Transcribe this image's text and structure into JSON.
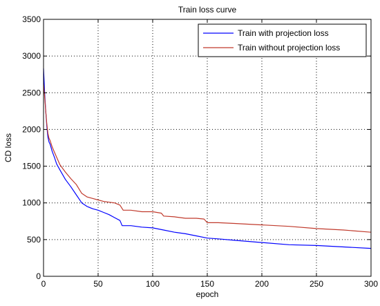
{
  "chart_data": {
    "type": "line",
    "title": "Train loss curve",
    "xlabel": "epoch",
    "ylabel": "CD loss",
    "xlim": [
      0,
      300
    ],
    "ylim": [
      0,
      3500
    ],
    "xticks": [
      0,
      50,
      100,
      150,
      200,
      250,
      300
    ],
    "yticks": [
      0,
      500,
      1000,
      1500,
      2000,
      2500,
      3000,
      3500
    ],
    "grid": true,
    "legend_position": "top-right",
    "series": [
      {
        "name": "Train with projection loss",
        "color": "#0000ff",
        "x": [
          0,
          1,
          2,
          3,
          4,
          5,
          6,
          8,
          10,
          12,
          15,
          20,
          25,
          30,
          35,
          40,
          45,
          50,
          55,
          60,
          65,
          70,
          72,
          80,
          90,
          100,
          110,
          120,
          130,
          140,
          150,
          160,
          175,
          200,
          225,
          250,
          275,
          300
        ],
        "values": [
          2830,
          2500,
          2250,
          2050,
          1900,
          1830,
          1800,
          1700,
          1620,
          1530,
          1450,
          1320,
          1220,
          1110,
          1000,
          950,
          920,
          900,
          870,
          840,
          800,
          760,
          690,
          690,
          670,
          660,
          630,
          600,
          580,
          550,
          520,
          510,
          490,
          460,
          430,
          420,
          400,
          380
        ]
      },
      {
        "name": "Train without projection loss",
        "color": "#c0392b",
        "x": [
          0,
          1,
          2,
          3,
          4,
          5,
          6,
          8,
          10,
          12,
          15,
          20,
          25,
          30,
          35,
          40,
          45,
          50,
          55,
          60,
          65,
          70,
          73,
          80,
          90,
          100,
          108,
          110,
          120,
          130,
          140,
          147,
          150,
          160,
          175,
          200,
          225,
          250,
          275,
          300
        ],
        "values": [
          2620,
          2450,
          2250,
          2080,
          1950,
          1880,
          1850,
          1760,
          1690,
          1620,
          1520,
          1420,
          1330,
          1250,
          1130,
          1080,
          1060,
          1040,
          1020,
          1010,
          1000,
          970,
          900,
          900,
          880,
          880,
          860,
          820,
          810,
          790,
          790,
          780,
          730,
          730,
          720,
          700,
          680,
          650,
          630,
          600
        ]
      }
    ]
  }
}
